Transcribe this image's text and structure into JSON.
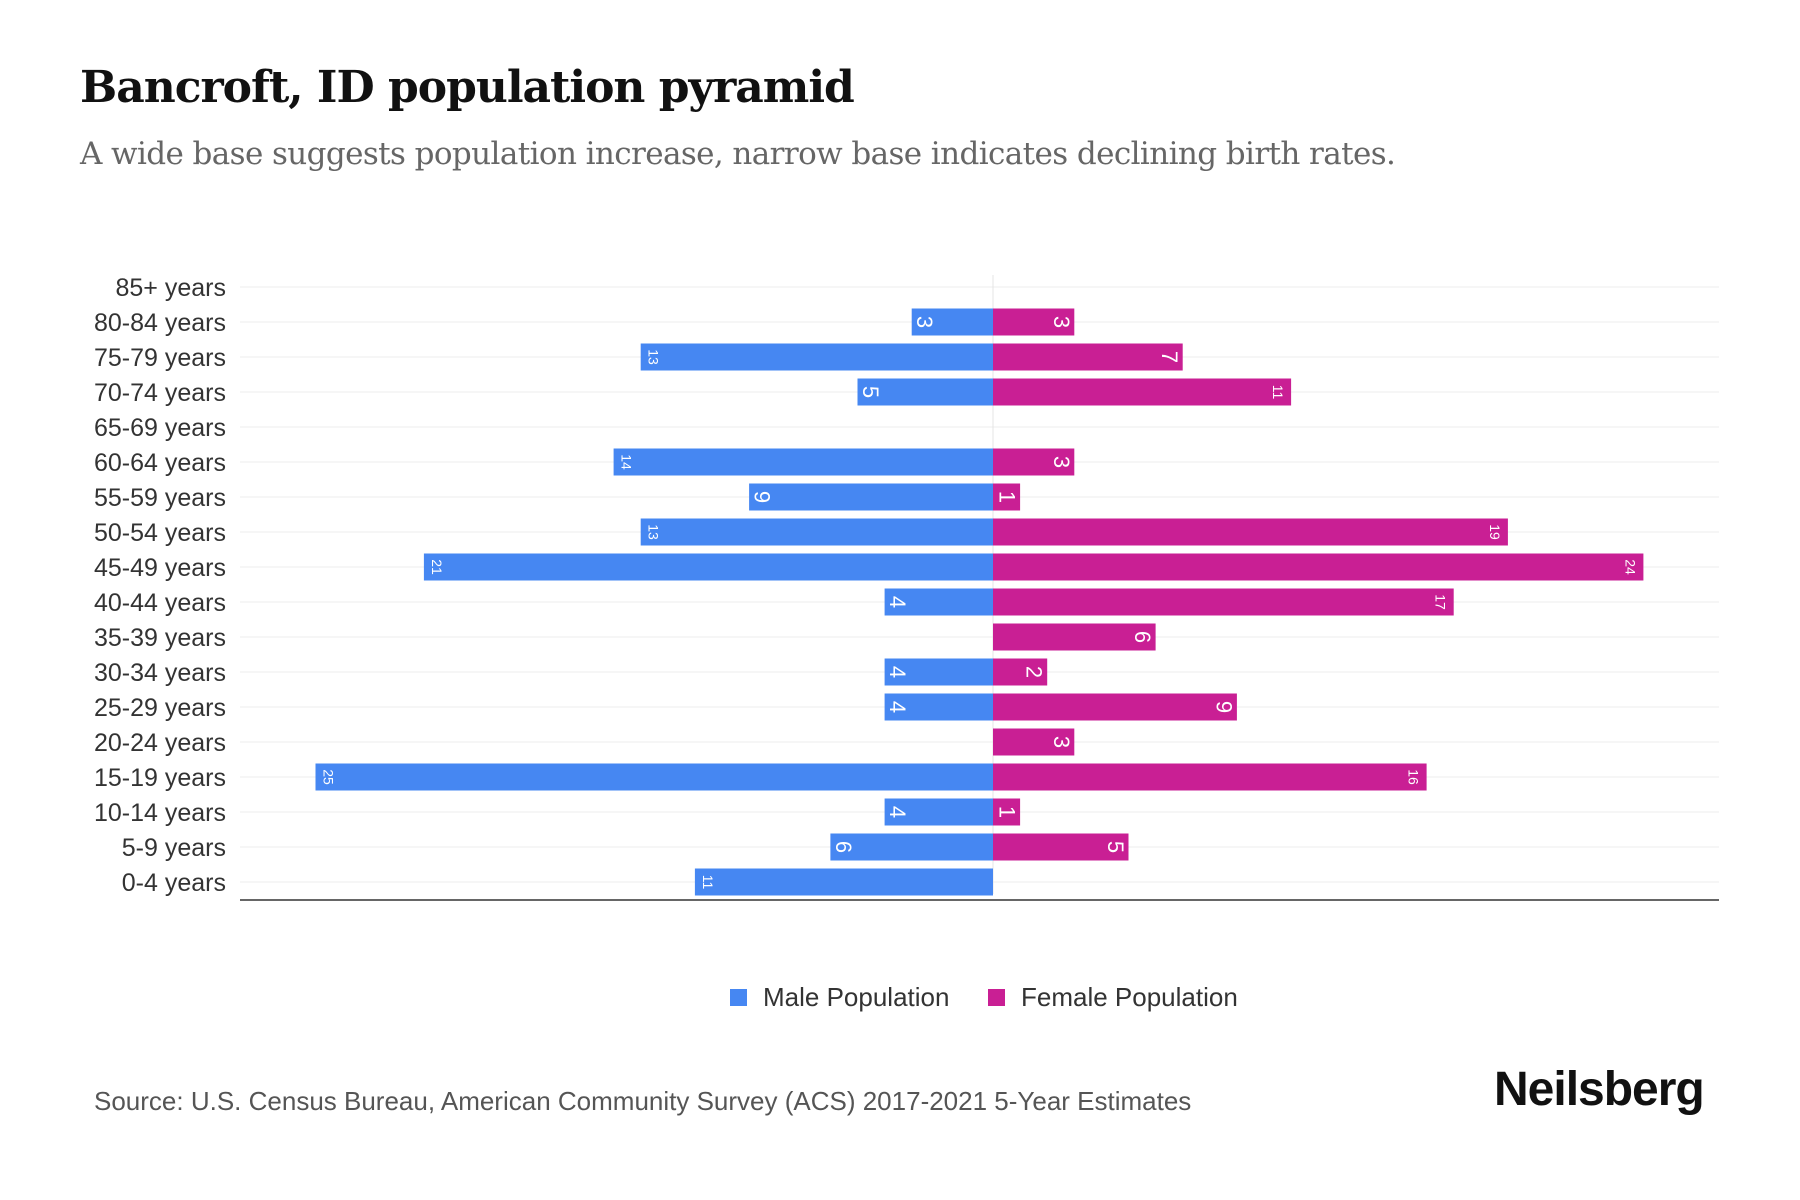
{
  "title": "Bancroft, ID population pyramid",
  "subtitle": "A wide base suggests population increase, narrow base indicates declining birth rates.",
  "source": "Source: U.S. Census Bureau, American Community Survey (ACS) 2017-2021 5-Year Estimates",
  "brand": "Neilsberg",
  "colors": {
    "male": "#4687F2",
    "female": "#C91F94"
  },
  "chart_data": {
    "type": "bar",
    "orientation": "horizontal-pyramid",
    "title": "Bancroft, ID population pyramid",
    "categories": [
      "85+ years",
      "80-84 years",
      "75-79 years",
      "70-74 years",
      "65-69 years",
      "60-64 years",
      "55-59 years",
      "50-54 years",
      "45-49 years",
      "40-44 years",
      "35-39 years",
      "30-34 years",
      "25-29 years",
      "20-24 years",
      "15-19 years",
      "10-14 years",
      "5-9 years",
      "0-4 years"
    ],
    "series": [
      {
        "name": "Male Population",
        "values": [
          0,
          3,
          13,
          5,
          0,
          14,
          9,
          13,
          21,
          4,
          0,
          4,
          4,
          0,
          25,
          4,
          6,
          11
        ]
      },
      {
        "name": "Female Population",
        "values": [
          0,
          3,
          7,
          11,
          0,
          3,
          1,
          19,
          24,
          17,
          6,
          2,
          9,
          3,
          16,
          1,
          5,
          0
        ]
      }
    ],
    "legend_position": "bottom",
    "grid": true
  }
}
